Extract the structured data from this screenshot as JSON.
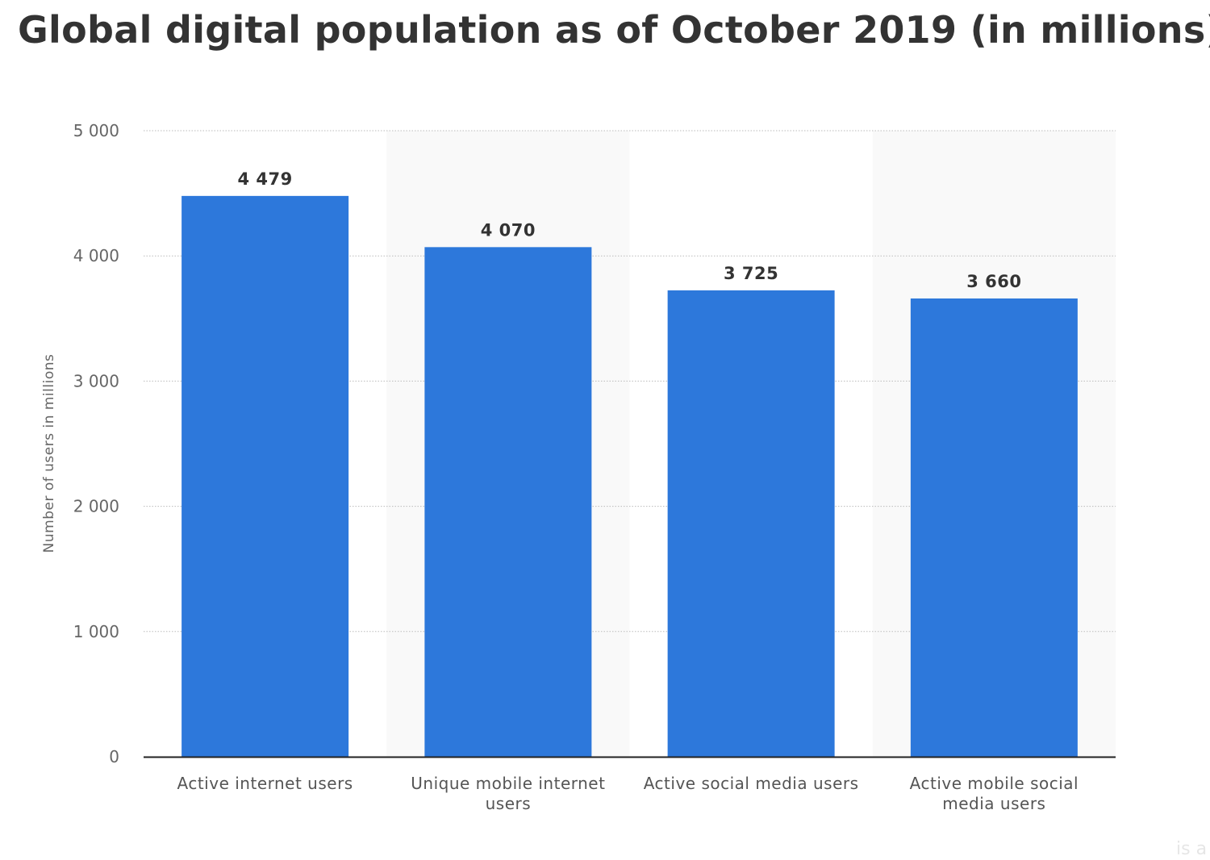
{
  "chart_data": {
    "type": "bar",
    "title": "Global digital population as of October 2019 (in millions)",
    "xlabel": "",
    "ylabel": "Number of users in millions",
    "categories": [
      [
        "Active internet users"
      ],
      [
        "Unique mobile internet",
        "users"
      ],
      [
        "Active social media users"
      ],
      [
        "Active mobile social",
        "media users"
      ]
    ],
    "values": [
      4479,
      4070,
      3725,
      3660
    ],
    "data_labels": [
      "4 479",
      "4 070",
      "3 725",
      "3 660"
    ],
    "ylim": [
      0,
      5000
    ],
    "yticks": [
      0,
      1000,
      2000,
      3000,
      4000,
      5000
    ],
    "ytick_labels": [
      "0",
      "1 000",
      "2 000",
      "3 000",
      "4 000",
      "5 000"
    ],
    "grid": true,
    "legend": "none",
    "bar_color": "#2d78db",
    "band_color": "#f9f9f9"
  },
  "footer_fragment": "is a"
}
